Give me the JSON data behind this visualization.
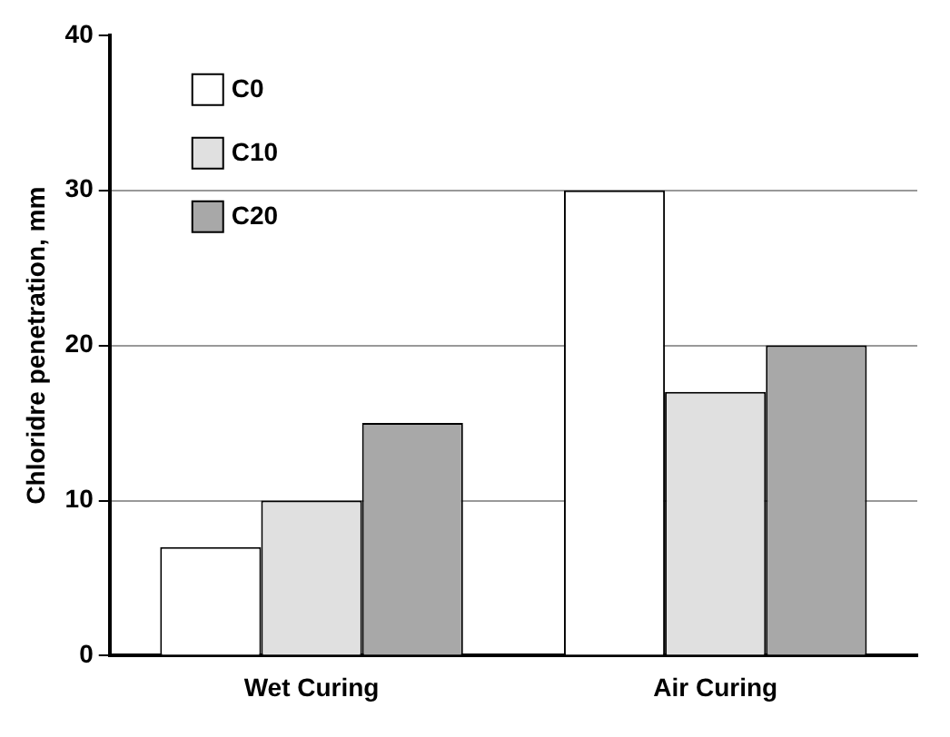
{
  "chart_data": {
    "type": "bar",
    "ylabel": "Chloridre penetration, mm",
    "categories": [
      "Wet Curing",
      "Air Curing"
    ],
    "series": [
      {
        "name": "C0",
        "color": "#ffffff",
        "values": [
          7,
          30
        ]
      },
      {
        "name": "C10",
        "color": "#e0e0e0",
        "values": [
          10,
          17
        ]
      },
      {
        "name": "C20",
        "color": "#a8a8a8",
        "values": [
          15,
          20
        ]
      }
    ],
    "ylim": [
      0,
      40
    ],
    "yticks": [
      0,
      10,
      20,
      30,
      40
    ],
    "grid": "y",
    "legend": "top left"
  }
}
